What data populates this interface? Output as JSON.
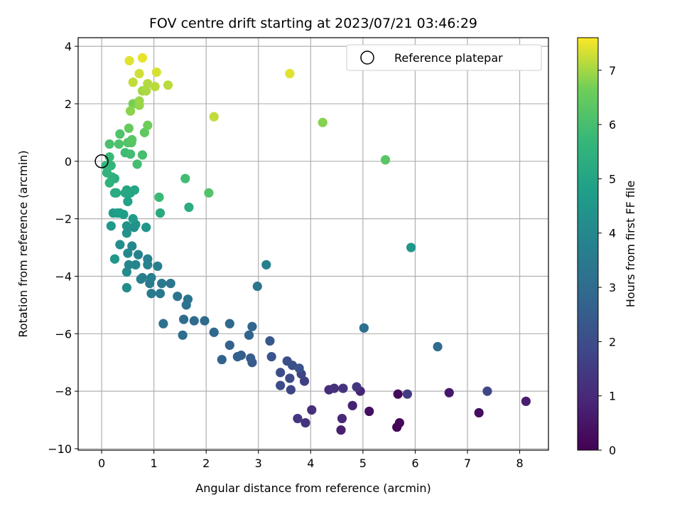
{
  "chart_data": {
    "type": "scatter",
    "title": "FOV centre drift starting at 2023/07/21 03:46:29",
    "xlabel": "Angular distance from reference (arcmin)",
    "ylabel": "Rotation from reference (arcmin)",
    "xlim": [
      -0.45,
      8.55
    ],
    "ylim": [
      -10.05,
      4.3
    ],
    "xticks": [
      0,
      1,
      2,
      3,
      4,
      5,
      6,
      7,
      8
    ],
    "yticks": [
      -10,
      -8,
      -6,
      -4,
      -2,
      0,
      2,
      4
    ],
    "grid": true,
    "legend": {
      "label": "Reference platepar",
      "placement": "top-right",
      "marker": "open-circle"
    },
    "reference_point": {
      "x": 0,
      "y": 0
    },
    "colorbar": {
      "label": "Hours from first FF file",
      "colormap": "viridis",
      "min": 0,
      "max": 7.6,
      "ticks": [
        0,
        1,
        2,
        3,
        4,
        5,
        6,
        7
      ]
    },
    "points": [
      {
        "x": 5.65,
        "y": -9.25,
        "c": 0.1
      },
      {
        "x": 5.7,
        "y": -9.1,
        "c": 0.15
      },
      {
        "x": 5.67,
        "y": -8.1,
        "c": 0.2
      },
      {
        "x": 7.22,
        "y": -8.75,
        "c": 0.3
      },
      {
        "x": 5.12,
        "y": -8.7,
        "c": 0.35
      },
      {
        "x": 6.65,
        "y": -8.05,
        "c": 0.55
      },
      {
        "x": 8.12,
        "y": -8.35,
        "c": 0.7
      },
      {
        "x": 4.58,
        "y": -9.35,
        "c": 0.75
      },
      {
        "x": 4.8,
        "y": -8.5,
        "c": 0.8
      },
      {
        "x": 4.95,
        "y": -8.0,
        "c": 0.85
      },
      {
        "x": 4.6,
        "y": -8.95,
        "c": 0.95
      },
      {
        "x": 4.02,
        "y": -8.65,
        "c": 1.15
      },
      {
        "x": 3.9,
        "y": -9.1,
        "c": 1.25
      },
      {
        "x": 3.75,
        "y": -8.95,
        "c": 1.35
      },
      {
        "x": 4.35,
        "y": -7.95,
        "c": 1.1
      },
      {
        "x": 4.45,
        "y": -7.9,
        "c": 1.2
      },
      {
        "x": 4.62,
        "y": -7.9,
        "c": 1.25
      },
      {
        "x": 4.88,
        "y": -7.85,
        "c": 1.3
      },
      {
        "x": 5.85,
        "y": -8.1,
        "c": 1.5
      },
      {
        "x": 7.38,
        "y": -8.0,
        "c": 1.75
      },
      {
        "x": 3.88,
        "y": -7.65,
        "c": 1.6
      },
      {
        "x": 3.82,
        "y": -7.4,
        "c": 1.7
      },
      {
        "x": 3.62,
        "y": -7.95,
        "c": 1.8
      },
      {
        "x": 3.6,
        "y": -7.55,
        "c": 1.9
      },
      {
        "x": 3.42,
        "y": -7.8,
        "c": 1.95
      },
      {
        "x": 3.42,
        "y": -7.35,
        "c": 2.0
      },
      {
        "x": 3.55,
        "y": -6.95,
        "c": 2.05
      },
      {
        "x": 3.65,
        "y": -7.1,
        "c": 2.1
      },
      {
        "x": 3.78,
        "y": -7.2,
        "c": 2.15
      },
      {
        "x": 3.25,
        "y": -6.8,
        "c": 2.25
      },
      {
        "x": 3.22,
        "y": -6.25,
        "c": 2.35
      },
      {
        "x": 2.88,
        "y": -7.0,
        "c": 2.45
      },
      {
        "x": 2.85,
        "y": -6.85,
        "c": 2.5
      },
      {
        "x": 2.67,
        "y": -6.75,
        "c": 2.55
      },
      {
        "x": 2.6,
        "y": -6.8,
        "c": 2.6
      },
      {
        "x": 2.45,
        "y": -6.4,
        "c": 2.65
      },
      {
        "x": 2.3,
        "y": -6.9,
        "c": 2.7
      },
      {
        "x": 2.82,
        "y": -6.05,
        "c": 2.75
      },
      {
        "x": 2.88,
        "y": -5.75,
        "c": 2.8
      },
      {
        "x": 2.45,
        "y": -5.65,
        "c": 2.85
      },
      {
        "x": 2.15,
        "y": -5.95,
        "c": 2.9
      },
      {
        "x": 1.97,
        "y": -5.55,
        "c": 2.95
      },
      {
        "x": 1.77,
        "y": -5.55,
        "c": 3.0
      },
      {
        "x": 1.57,
        "y": -5.5,
        "c": 3.05
      },
      {
        "x": 1.55,
        "y": -6.05,
        "c": 3.1
      },
      {
        "x": 1.18,
        "y": -5.65,
        "c": 3.15
      },
      {
        "x": 6.43,
        "y": -6.45,
        "c": 3.0
      },
      {
        "x": 5.02,
        "y": -5.8,
        "c": 3.1
      },
      {
        "x": 1.62,
        "y": -5.0,
        "c": 3.2
      },
      {
        "x": 1.65,
        "y": -4.8,
        "c": 3.25
      },
      {
        "x": 1.45,
        "y": -4.7,
        "c": 3.3
      },
      {
        "x": 1.32,
        "y": -4.25,
        "c": 3.35
      },
      {
        "x": 1.15,
        "y": -4.25,
        "c": 3.4
      },
      {
        "x": 1.12,
        "y": -4.6,
        "c": 3.45
      },
      {
        "x": 0.95,
        "y": -4.6,
        "c": 3.5
      },
      {
        "x": 0.92,
        "y": -4.25,
        "c": 3.55
      },
      {
        "x": 0.95,
        "y": -4.05,
        "c": 3.6
      },
      {
        "x": 0.78,
        "y": -4.05,
        "c": 3.65
      },
      {
        "x": 0.75,
        "y": -4.1,
        "c": 3.7
      },
      {
        "x": 1.07,
        "y": -3.65,
        "c": 3.7
      },
      {
        "x": 0.88,
        "y": -3.6,
        "c": 3.75
      },
      {
        "x": 0.88,
        "y": -3.4,
        "c": 3.8
      },
      {
        "x": 0.7,
        "y": -3.25,
        "c": 3.85
      },
      {
        "x": 0.65,
        "y": -3.6,
        "c": 3.9
      },
      {
        "x": 0.52,
        "y": -3.6,
        "c": 3.95
      },
      {
        "x": 0.58,
        "y": -2.95,
        "c": 4.0
      },
      {
        "x": 0.5,
        "y": -3.2,
        "c": 4.05
      },
      {
        "x": 0.48,
        "y": -3.85,
        "c": 4.1
      },
      {
        "x": 0.48,
        "y": -4.4,
        "c": 4.15
      },
      {
        "x": 2.98,
        "y": -4.35,
        "c": 3.4
      },
      {
        "x": 3.15,
        "y": -3.6,
        "c": 3.7
      },
      {
        "x": 0.35,
        "y": -2.9,
        "c": 4.2
      },
      {
        "x": 0.62,
        "y": -2.3,
        "c": 4.25
      },
      {
        "x": 0.65,
        "y": -2.2,
        "c": 4.3
      },
      {
        "x": 0.48,
        "y": -2.5,
        "c": 4.35
      },
      {
        "x": 0.48,
        "y": -2.25,
        "c": 4.4
      },
      {
        "x": 0.85,
        "y": -2.3,
        "c": 4.45
      },
      {
        "x": 0.25,
        "y": -3.4,
        "c": 4.5
      },
      {
        "x": 0.18,
        "y": -2.25,
        "c": 4.55
      },
      {
        "x": 0.6,
        "y": -2.0,
        "c": 4.6
      },
      {
        "x": 0.22,
        "y": -1.8,
        "c": 4.65
      },
      {
        "x": 0.3,
        "y": -1.8,
        "c": 4.7
      },
      {
        "x": 0.35,
        "y": -1.8,
        "c": 4.75
      },
      {
        "x": 0.42,
        "y": -1.85,
        "c": 4.8
      },
      {
        "x": 5.92,
        "y": -3.0,
        "c": 4.5
      },
      {
        "x": 0.5,
        "y": -1.4,
        "c": 4.9
      },
      {
        "x": 0.48,
        "y": -1.0,
        "c": 4.95
      },
      {
        "x": 0.55,
        "y": -1.1,
        "c": 5.0
      },
      {
        "x": 0.63,
        "y": -1.0,
        "c": 5.05
      },
      {
        "x": 0.45,
        "y": -1.1,
        "c": 5.1
      },
      {
        "x": 0.28,
        "y": -1.1,
        "c": 5.15
      },
      {
        "x": 0.25,
        "y": -1.1,
        "c": 5.2
      },
      {
        "x": 1.12,
        "y": -1.8,
        "c": 5.2
      },
      {
        "x": 1.67,
        "y": -1.6,
        "c": 5.3
      },
      {
        "x": 0.25,
        "y": -0.6,
        "c": 5.4
      },
      {
        "x": 0.2,
        "y": -0.55,
        "c": 5.45
      },
      {
        "x": 0.15,
        "y": -0.75,
        "c": 5.5
      },
      {
        "x": 0.1,
        "y": -0.4,
        "c": 5.55
      },
      {
        "x": 0.18,
        "y": -0.15,
        "c": 5.6
      },
      {
        "x": 0.08,
        "y": -0.15,
        "c": 5.65
      },
      {
        "x": 1.1,
        "y": -1.25,
        "c": 5.8
      },
      {
        "x": 1.6,
        "y": -0.6,
        "c": 5.9
      },
      {
        "x": 2.05,
        "y": -1.1,
        "c": 6.2
      },
      {
        "x": 0.15,
        "y": 0.15,
        "c": 5.75
      },
      {
        "x": 0.45,
        "y": 0.3,
        "c": 5.85
      },
      {
        "x": 0.55,
        "y": 0.25,
        "c": 5.9
      },
      {
        "x": 0.68,
        "y": -0.1,
        "c": 5.95
      },
      {
        "x": 0.78,
        "y": 0.22,
        "c": 6.0
      },
      {
        "x": 0.15,
        "y": 0.6,
        "c": 6.05
      },
      {
        "x": 0.33,
        "y": 0.6,
        "c": 6.1
      },
      {
        "x": 0.35,
        "y": 0.95,
        "c": 6.15
      },
      {
        "x": 0.5,
        "y": 0.65,
        "c": 6.2
      },
      {
        "x": 0.57,
        "y": 0.65,
        "c": 6.25
      },
      {
        "x": 0.58,
        "y": 0.75,
        "c": 6.3
      },
      {
        "x": 0.82,
        "y": 1.0,
        "c": 6.4
      },
      {
        "x": 0.52,
        "y": 1.15,
        "c": 6.5
      },
      {
        "x": 0.88,
        "y": 1.25,
        "c": 6.6
      },
      {
        "x": 5.43,
        "y": 0.05,
        "c": 6.3
      },
      {
        "x": 4.23,
        "y": 1.35,
        "c": 6.8
      },
      {
        "x": 0.6,
        "y": 2.0,
        "c": 6.7
      },
      {
        "x": 0.55,
        "y": 1.75,
        "c": 6.85
      },
      {
        "x": 0.72,
        "y": 1.95,
        "c": 6.9
      },
      {
        "x": 0.72,
        "y": 2.1,
        "c": 6.95
      },
      {
        "x": 0.78,
        "y": 2.45,
        "c": 7.0
      },
      {
        "x": 0.85,
        "y": 2.45,
        "c": 7.05
      },
      {
        "x": 0.88,
        "y": 2.7,
        "c": 7.1
      },
      {
        "x": 1.02,
        "y": 2.6,
        "c": 7.15
      },
      {
        "x": 1.27,
        "y": 2.65,
        "c": 7.15
      },
      {
        "x": 0.6,
        "y": 2.75,
        "c": 7.2
      },
      {
        "x": 0.72,
        "y": 3.05,
        "c": 7.3
      },
      {
        "x": 1.05,
        "y": 3.1,
        "c": 7.35
      },
      {
        "x": 0.53,
        "y": 3.5,
        "c": 7.4
      },
      {
        "x": 0.78,
        "y": 3.6,
        "c": 7.45
      },
      {
        "x": 2.15,
        "y": 1.55,
        "c": 7.2
      },
      {
        "x": 3.6,
        "y": 3.05,
        "c": 7.4
      }
    ]
  }
}
